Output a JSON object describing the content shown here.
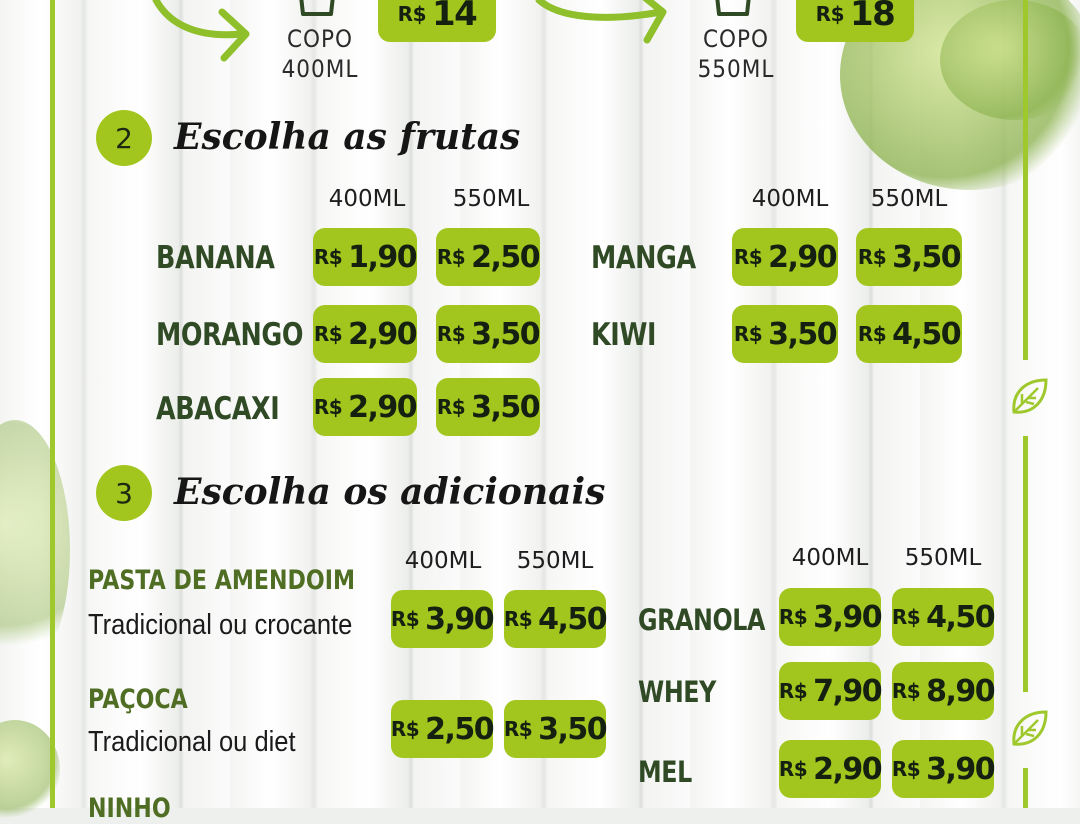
{
  "colors": {
    "accent": "#a2c61e",
    "frame": "#9fc82c",
    "title_text": "#161616",
    "item_text": "#2f4a24"
  },
  "cups": [
    {
      "label_line1": "COPO",
      "label_line2": "400ML",
      "price_currency": "R$",
      "price_value": "14"
    },
    {
      "label_line1": "COPO",
      "label_line2": "550ML",
      "price_currency": "R$",
      "price_value": "18"
    }
  ],
  "step2": {
    "number": "2",
    "title": "Escolha as frutas",
    "col_400": "400ML",
    "col_550": "550ML",
    "left": [
      {
        "name": "BANANA",
        "p400": "1,90",
        "p550": "2,50"
      },
      {
        "name": "MORANGO",
        "p400": "2,90",
        "p550": "3,50"
      },
      {
        "name": "ABACAXI",
        "p400": "2,90",
        "p550": "3,50"
      }
    ],
    "right": [
      {
        "name": "MANGA",
        "p400": "2,90",
        "p550": "3,50"
      },
      {
        "name": "KIWI",
        "p400": "3,50",
        "p550": "4,50"
      }
    ]
  },
  "step3": {
    "number": "3",
    "title": "Escolha os adicionais",
    "col_400": "400ML",
    "col_550": "550ML",
    "left": [
      {
        "name": "PASTA DE AMENDOIM",
        "sub": "Tradicional ou crocante",
        "p400": "3,90",
        "p550": "4,50"
      },
      {
        "name": "PAÇOCA",
        "sub": "Tradicional ou diet",
        "p400": "2,50",
        "p550": "3,50"
      },
      {
        "name": "NINHO",
        "sub": "",
        "p400": "",
        "p550": ""
      }
    ],
    "right": [
      {
        "name": "GRANOLA",
        "p400": "3,90",
        "p550": "4,50"
      },
      {
        "name": "WHEY",
        "p400": "7,90",
        "p550": "8,90"
      },
      {
        "name": "MEL",
        "p400": "2,90",
        "p550": "3,90"
      }
    ]
  },
  "currency": "R$",
  "icons": [
    "arrow-icon",
    "cup-icon",
    "leaf-icon"
  ]
}
